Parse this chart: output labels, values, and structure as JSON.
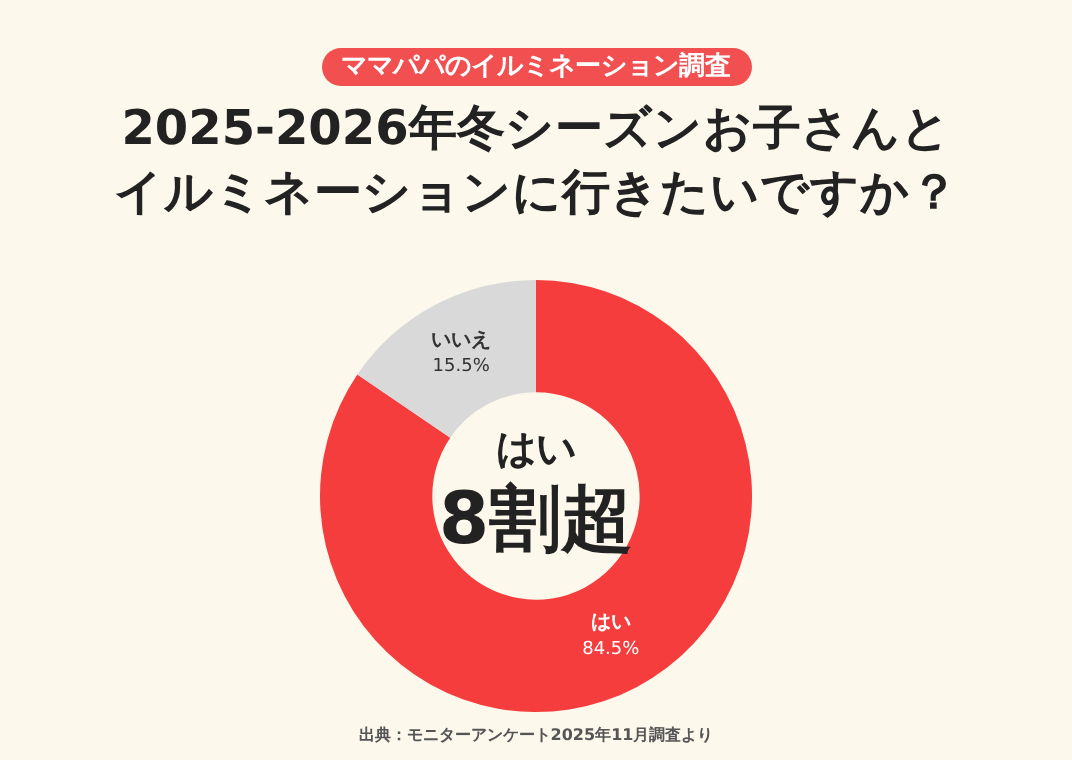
{
  "chart_data": {
    "type": "donut",
    "subtitle": "ママパパのイルミネーション調査",
    "title": "2025-2026年冬シーズンお子さんとイルミネーションに行きたいですか？",
    "categories": [
      "はい",
      "いいえ"
    ],
    "values": [
      84.5,
      15.5
    ],
    "colors": [
      "#f53d3d",
      "#d9d9d9"
    ],
    "value_labels": [
      "84.5%",
      "15.5%"
    ],
    "legend": false,
    "annotations": [
      "はい",
      "8割超",
      "出典：モニターアンケート2025年11月調査より"
    ]
  }
}
